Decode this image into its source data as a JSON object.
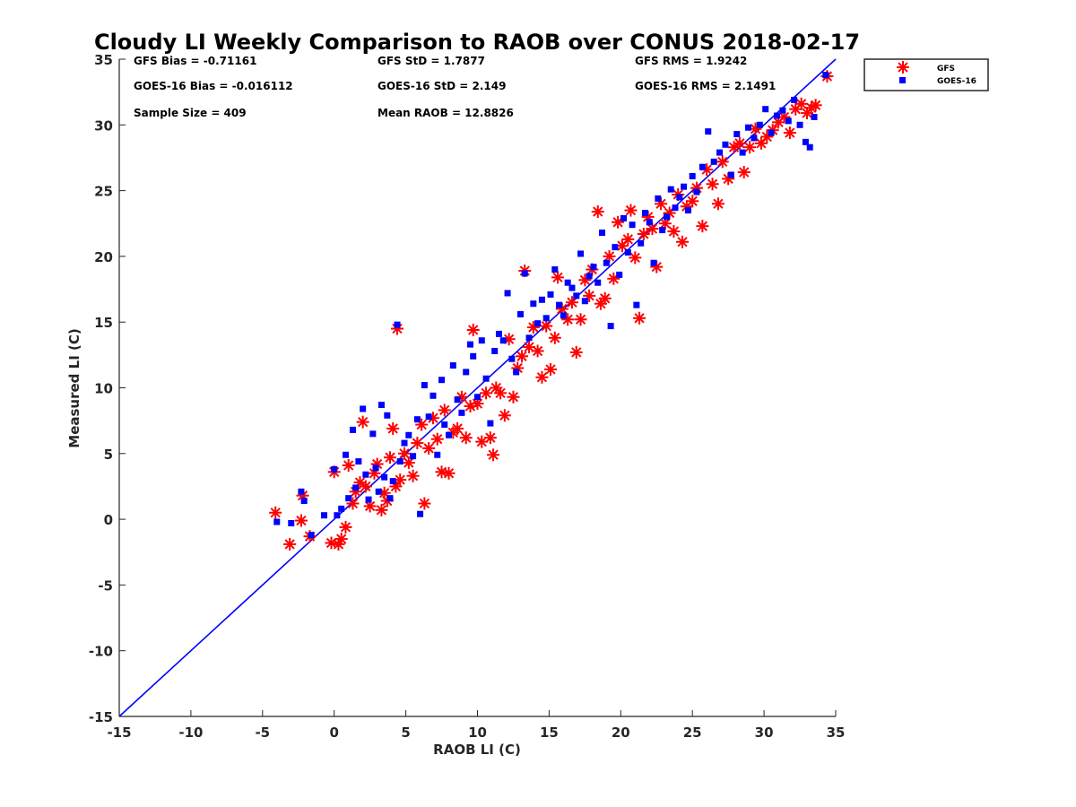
{
  "chart_data": {
    "type": "scatter",
    "title": "Cloudy LI Weekly Comparison to RAOB over CONUS 2018-02-17",
    "xlabel": "RAOB LI (C)",
    "ylabel": "Measured LI (C)",
    "xlim": [
      -15,
      35
    ],
    "ylim": [
      -15,
      35
    ],
    "xticks": [
      "-15",
      "-10",
      "-5",
      "0",
      "5",
      "10",
      "15",
      "20",
      "25",
      "30",
      "35"
    ],
    "yticks": [
      "35",
      "30",
      "25",
      "20",
      "15",
      "10",
      "5",
      "0",
      "-5",
      "-10",
      "-15"
    ],
    "grid": false,
    "legend_position": "outside-top-right",
    "stats": [
      "GFS Bias = -0.71161",
      "GFS StD = 1.7877",
      "GFS RMS = 1.9242",
      "GOES-16 Bias = -0.016112",
      "GOES-16 StD = 2.149",
      "GOES-16 RMS = 2.1491",
      "Sample Size = 409",
      "Mean RAOB = 12.8826"
    ],
    "reference_line": {
      "x": [
        -15,
        35
      ],
      "y": [
        -15,
        35
      ],
      "color": "#0000ff"
    },
    "series": [
      {
        "name": "GFS",
        "marker": "asterisk",
        "color": "#ff0000",
        "points": [
          [
            -4.1,
            0.5
          ],
          [
            -3.1,
            -1.9
          ],
          [
            -2.3,
            -0.1
          ],
          [
            -2.2,
            1.8
          ],
          [
            -1.7,
            -1.3
          ],
          [
            -0.2,
            -1.8
          ],
          [
            0.0,
            3.6
          ],
          [
            0.3,
            -1.9
          ],
          [
            0.5,
            -1.5
          ],
          [
            0.8,
            -0.6
          ],
          [
            1.0,
            4.1
          ],
          [
            1.3,
            1.2
          ],
          [
            1.5,
            2.1
          ],
          [
            1.8,
            2.8
          ],
          [
            2.0,
            7.4
          ],
          [
            2.2,
            2.5
          ],
          [
            2.5,
            1.0
          ],
          [
            2.8,
            3.5
          ],
          [
            3.0,
            4.2
          ],
          [
            3.3,
            0.7
          ],
          [
            3.5,
            2.0
          ],
          [
            3.7,
            1.4
          ],
          [
            3.9,
            4.7
          ],
          [
            4.1,
            6.9
          ],
          [
            4.3,
            2.5
          ],
          [
            4.4,
            14.5
          ],
          [
            4.6,
            3.0
          ],
          [
            4.9,
            5.0
          ],
          [
            5.2,
            4.3
          ],
          [
            5.5,
            3.3
          ],
          [
            5.8,
            5.8
          ],
          [
            6.1,
            7.2
          ],
          [
            6.3,
            1.2
          ],
          [
            6.6,
            5.4
          ],
          [
            6.9,
            7.7
          ],
          [
            7.2,
            6.1
          ],
          [
            7.5,
            3.6
          ],
          [
            7.7,
            8.3
          ],
          [
            8.0,
            3.5
          ],
          [
            8.3,
            6.6
          ],
          [
            8.6,
            6.9
          ],
          [
            8.9,
            9.3
          ],
          [
            9.2,
            6.2
          ],
          [
            9.5,
            8.6
          ],
          [
            9.7,
            14.4
          ],
          [
            10.0,
            8.8
          ],
          [
            10.3,
            5.9
          ],
          [
            10.6,
            9.6
          ],
          [
            10.9,
            6.2
          ],
          [
            11.1,
            4.9
          ],
          [
            11.3,
            10.0
          ],
          [
            11.6,
            9.6
          ],
          [
            11.9,
            7.9
          ],
          [
            12.2,
            13.7
          ],
          [
            12.5,
            9.3
          ],
          [
            12.8,
            11.5
          ],
          [
            13.1,
            12.4
          ],
          [
            13.3,
            18.9
          ],
          [
            13.6,
            13.1
          ],
          [
            13.9,
            14.6
          ],
          [
            14.2,
            12.8
          ],
          [
            14.5,
            10.8
          ],
          [
            14.8,
            14.7
          ],
          [
            15.1,
            11.4
          ],
          [
            15.4,
            13.8
          ],
          [
            15.6,
            18.4
          ],
          [
            15.9,
            16.0
          ],
          [
            16.3,
            15.2
          ],
          [
            16.6,
            16.5
          ],
          [
            16.9,
            12.7
          ],
          [
            17.2,
            15.2
          ],
          [
            17.5,
            18.2
          ],
          [
            17.8,
            17.0
          ],
          [
            18.0,
            19.0
          ],
          [
            18.4,
            23.4
          ],
          [
            18.6,
            16.4
          ],
          [
            18.9,
            16.8
          ],
          [
            19.2,
            20.0
          ],
          [
            19.5,
            18.3
          ],
          [
            19.8,
            22.6
          ],
          [
            20.1,
            20.8
          ],
          [
            20.5,
            21.3
          ],
          [
            20.7,
            23.5
          ],
          [
            21.0,
            19.9
          ],
          [
            21.3,
            15.3
          ],
          [
            21.6,
            21.7
          ],
          [
            21.9,
            23.0
          ],
          [
            22.2,
            22.1
          ],
          [
            22.5,
            19.2
          ],
          [
            22.8,
            24.0
          ],
          [
            23.1,
            22.5
          ],
          [
            23.4,
            23.3
          ],
          [
            23.7,
            21.9
          ],
          [
            24.0,
            24.7
          ],
          [
            24.3,
            21.1
          ],
          [
            24.6,
            23.8
          ],
          [
            25.0,
            24.2
          ],
          [
            25.3,
            25.2
          ],
          [
            25.7,
            22.3
          ],
          [
            26.0,
            26.6
          ],
          [
            26.4,
            25.5
          ],
          [
            26.8,
            24.0
          ],
          [
            27.1,
            27.2
          ],
          [
            27.5,
            25.9
          ],
          [
            27.9,
            28.3
          ],
          [
            28.3,
            28.6
          ],
          [
            28.6,
            26.4
          ],
          [
            29.0,
            28.3
          ],
          [
            29.4,
            29.7
          ],
          [
            29.8,
            28.6
          ],
          [
            30.2,
            29.1
          ],
          [
            30.6,
            29.6
          ],
          [
            31.0,
            30.2
          ],
          [
            31.4,
            30.6
          ],
          [
            31.8,
            29.4
          ],
          [
            32.2,
            31.2
          ],
          [
            32.6,
            31.6
          ],
          [
            33.0,
            30.9
          ],
          [
            33.3,
            31.3
          ],
          [
            33.6,
            31.5
          ],
          [
            34.4,
            33.7
          ]
        ]
      },
      {
        "name": "GOES-16",
        "marker": "square",
        "color": "#0000ff",
        "points": [
          [
            -4.0,
            -0.2
          ],
          [
            -3.0,
            -0.3
          ],
          [
            -2.3,
            2.1
          ],
          [
            -2.1,
            1.4
          ],
          [
            -1.6,
            -1.2
          ],
          [
            -0.7,
            0.3
          ],
          [
            0.0,
            3.8
          ],
          [
            0.2,
            0.3
          ],
          [
            0.5,
            0.8
          ],
          [
            0.8,
            4.9
          ],
          [
            1.0,
            1.6
          ],
          [
            1.3,
            6.8
          ],
          [
            1.5,
            2.4
          ],
          [
            1.7,
            4.4
          ],
          [
            2.0,
            8.4
          ],
          [
            2.2,
            3.4
          ],
          [
            2.4,
            1.5
          ],
          [
            2.7,
            6.5
          ],
          [
            2.9,
            3.9
          ],
          [
            3.1,
            2.1
          ],
          [
            3.3,
            8.7
          ],
          [
            3.5,
            3.2
          ],
          [
            3.7,
            7.9
          ],
          [
            3.9,
            1.6
          ],
          [
            4.1,
            2.9
          ],
          [
            4.4,
            14.8
          ],
          [
            4.6,
            4.4
          ],
          [
            4.9,
            5.8
          ],
          [
            5.2,
            6.4
          ],
          [
            5.5,
            4.8
          ],
          [
            5.8,
            7.6
          ],
          [
            6.0,
            0.4
          ],
          [
            6.3,
            10.2
          ],
          [
            6.6,
            7.8
          ],
          [
            6.9,
            9.4
          ],
          [
            7.2,
            4.9
          ],
          [
            7.5,
            10.6
          ],
          [
            7.7,
            7.2
          ],
          [
            8.0,
            6.4
          ],
          [
            8.3,
            11.7
          ],
          [
            8.6,
            9.1
          ],
          [
            8.9,
            8.1
          ],
          [
            9.2,
            11.2
          ],
          [
            9.5,
            13.3
          ],
          [
            9.7,
            12.4
          ],
          [
            10.0,
            9.3
          ],
          [
            10.3,
            13.6
          ],
          [
            10.6,
            10.7
          ],
          [
            10.9,
            7.3
          ],
          [
            11.2,
            12.8
          ],
          [
            11.5,
            14.1
          ],
          [
            11.8,
            13.6
          ],
          [
            12.1,
            17.2
          ],
          [
            12.4,
            12.2
          ],
          [
            12.7,
            11.2
          ],
          [
            13.0,
            15.6
          ],
          [
            13.3,
            18.7
          ],
          [
            13.6,
            13.8
          ],
          [
            13.9,
            16.4
          ],
          [
            14.2,
            14.9
          ],
          [
            14.5,
            16.7
          ],
          [
            14.8,
            15.3
          ],
          [
            15.1,
            17.1
          ],
          [
            15.4,
            19.0
          ],
          [
            15.7,
            16.3
          ],
          [
            16.0,
            15.5
          ],
          [
            16.3,
            18.0
          ],
          [
            16.6,
            17.6
          ],
          [
            16.9,
            17.0
          ],
          [
            17.2,
            20.2
          ],
          [
            17.5,
            16.6
          ],
          [
            17.8,
            18.5
          ],
          [
            18.1,
            19.2
          ],
          [
            18.4,
            18.0
          ],
          [
            18.7,
            21.8
          ],
          [
            19.0,
            19.5
          ],
          [
            19.3,
            14.7
          ],
          [
            19.6,
            20.7
          ],
          [
            19.9,
            18.6
          ],
          [
            20.2,
            22.9
          ],
          [
            20.5,
            20.3
          ],
          [
            20.8,
            22.4
          ],
          [
            21.1,
            16.3
          ],
          [
            21.4,
            21.0
          ],
          [
            21.7,
            23.3
          ],
          [
            22.0,
            22.6
          ],
          [
            22.3,
            19.5
          ],
          [
            22.6,
            24.4
          ],
          [
            22.9,
            22.0
          ],
          [
            23.2,
            23.0
          ],
          [
            23.5,
            25.1
          ],
          [
            23.8,
            23.7
          ],
          [
            24.1,
            24.5
          ],
          [
            24.4,
            25.3
          ],
          [
            24.7,
            23.5
          ],
          [
            25.0,
            26.1
          ],
          [
            25.3,
            24.9
          ],
          [
            25.7,
            26.8
          ],
          [
            26.1,
            29.5
          ],
          [
            26.5,
            27.2
          ],
          [
            26.9,
            27.9
          ],
          [
            27.3,
            28.5
          ],
          [
            27.7,
            26.2
          ],
          [
            28.1,
            29.3
          ],
          [
            28.5,
            27.9
          ],
          [
            28.9,
            29.8
          ],
          [
            29.3,
            29.0
          ],
          [
            29.7,
            30.0
          ],
          [
            30.1,
            31.2
          ],
          [
            30.5,
            29.4
          ],
          [
            30.9,
            30.7
          ],
          [
            31.3,
            31.1
          ],
          [
            31.7,
            30.3
          ],
          [
            32.1,
            31.9
          ],
          [
            32.5,
            30.0
          ],
          [
            32.9,
            28.7
          ],
          [
            33.2,
            28.3
          ],
          [
            33.5,
            30.6
          ],
          [
            34.3,
            33.8
          ]
        ]
      }
    ]
  }
}
